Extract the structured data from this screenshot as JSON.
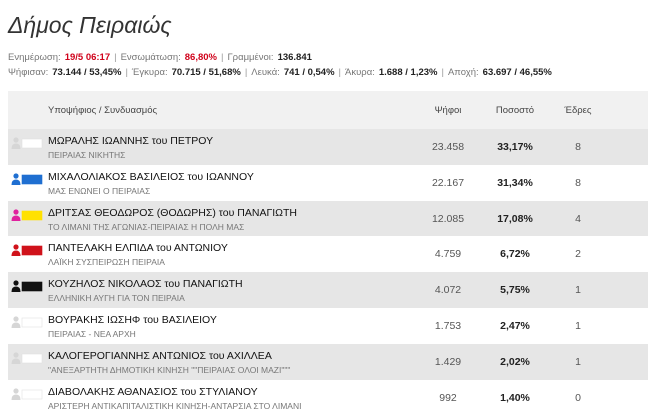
{
  "header": {
    "title": "Δήμος Πειραιώς"
  },
  "stats": [
    [
      {
        "label": "Ενημέρωση:",
        "value": "19/5 06:17",
        "color": "#d0021b"
      },
      {
        "label": "Ενσωμάτωση:",
        "value": "86,80%",
        "color": "#d0021b"
      },
      {
        "label": "Γραμμένοι:",
        "value": "136.841",
        "color": "#222222"
      }
    ],
    [
      {
        "label": "Ψήφισαν:",
        "value": "73.144 / 53,45%",
        "color": "#222222"
      },
      {
        "label": "Έγκυρα:",
        "value": "70.715 / 51,68%",
        "color": "#222222"
      },
      {
        "label": "Λευκά:",
        "value": "741 / 0,54%",
        "color": "#222222"
      },
      {
        "label": "Άκυρα:",
        "value": "1.688 / 1,23%",
        "color": "#222222"
      },
      {
        "label": "Αποχή:",
        "value": "63.697 / 46,55%",
        "color": "#222222"
      }
    ]
  ],
  "table": {
    "columns": [
      "Υποψήφιος / Συνδυασμός",
      "Ψήφοι",
      "Ποσοστό",
      "Έδρες"
    ],
    "rows": [
      {
        "name": "ΜΩΡΑΛΗΣ ΙΩΑΝΝΗΣ του ΠΕΤΡΟΥ",
        "party": "ΠΕΙΡΑΙΑΣ ΝΙΚΗΤΗΣ",
        "votes": "23.458",
        "percent": "33,17%",
        "seats": "8",
        "colors": [
          "#ffffff"
        ]
      },
      {
        "name": "ΜΙΧΑΛΟΛΙΑΚΟΣ ΒΑΣΙΛΕΙΟΣ του ΙΩΑΝΝΟΥ",
        "party": "ΜΑΣ ΕΝΩΝΕΙ Ο ΠΕΙΡΑΙΑΣ",
        "votes": "22.167",
        "percent": "31,34%",
        "seats": "8",
        "colors": [
          "#1f6fd1"
        ]
      },
      {
        "name": "ΔΡΙΤΣΑΣ ΘΕΟΔΩΡΟΣ (ΘΟΔΩΡΗΣ) του ΠΑΝΑΓΙΩΤΗ",
        "party": "ΤΟ ΛΙΜΑΝΙ ΤΗΣ ΑΓΩΝΙΑΣ-ΠΕΙΡΑΙΑΣ Η ΠΟΛΗ ΜΑΣ",
        "votes": "12.085",
        "percent": "17,08%",
        "seats": "4",
        "colors": [
          "#e0219e",
          "#ffe100"
        ]
      },
      {
        "name": "ΠΑΝΤΕΛΑΚΗ ΕΛΠΙΔΑ του ΑΝΤΩΝΙΟΥ",
        "party": "ΛΑΪΚΗ ΣΥΣΠΕΙΡΩΣΗ ΠΕΙΡΑΙΑ",
        "votes": "4.759",
        "percent": "6,72%",
        "seats": "2",
        "colors": [
          "#d0121b"
        ]
      },
      {
        "name": "ΚΟΥΖΗΛΟΣ ΝΙΚΟΛΑΟΣ του ΠΑΝΑΓΙΩΤΗ",
        "party": "ΕΛΛΗΝΙΚΗ ΑΥΓΗ ΓΙΑ ΤΟΝ ΠΕΙΡΑΙΑ",
        "votes": "4.072",
        "percent": "5,75%",
        "seats": "1",
        "colors": [
          "#111111"
        ]
      },
      {
        "name": "ΒΟΥΡΑΚΗΣ ΙΩΣΗΦ του ΒΑΣΙΛΕΙΟΥ",
        "party": "ΠΕΙΡΑΙΑΣ - ΝΕΑ ΑΡΧΗ",
        "votes": "1.753",
        "percent": "2,47%",
        "seats": "1",
        "colors": [
          "#ffffff"
        ]
      },
      {
        "name": "ΚΑΛΟΓΕΡΟΓΙΑΝΝΗΣ ΑΝΤΩΝΙΟΣ του ΑΧΙΛΛΕΑ",
        "party": "\"ΑΝΕΞΑΡΤΗΤΗ ΔΗΜΟΤΙΚΗ ΚΙΝΗΣΗ \"\"ΠΕΙΡΑΙΑΣ ΟΛΟΙ ΜΑΖΙ\"\"\"",
        "votes": "1.429",
        "percent": "2,02%",
        "seats": "1",
        "colors": [
          "#ffffff"
        ]
      },
      {
        "name": "ΔΙΑΒΟΛΑΚΗΣ ΑΘΑΝΑΣΙΟΣ του ΣΤΥΛΙΑΝΟΥ",
        "party": "ΑΡΙΣΤΕΡΗ ΑΝΤΙΚΑΠΙΤΑΛΙΣΤΙΚΗ ΚΙΝΗΣΗ-ΑΝΤΑΡΣΙΑ ΣΤΟ ΛΙΜΑΝΙ",
        "votes": "992",
        "percent": "1,40%",
        "seats": "0",
        "colors": [
          "#ffffff"
        ]
      }
    ]
  }
}
